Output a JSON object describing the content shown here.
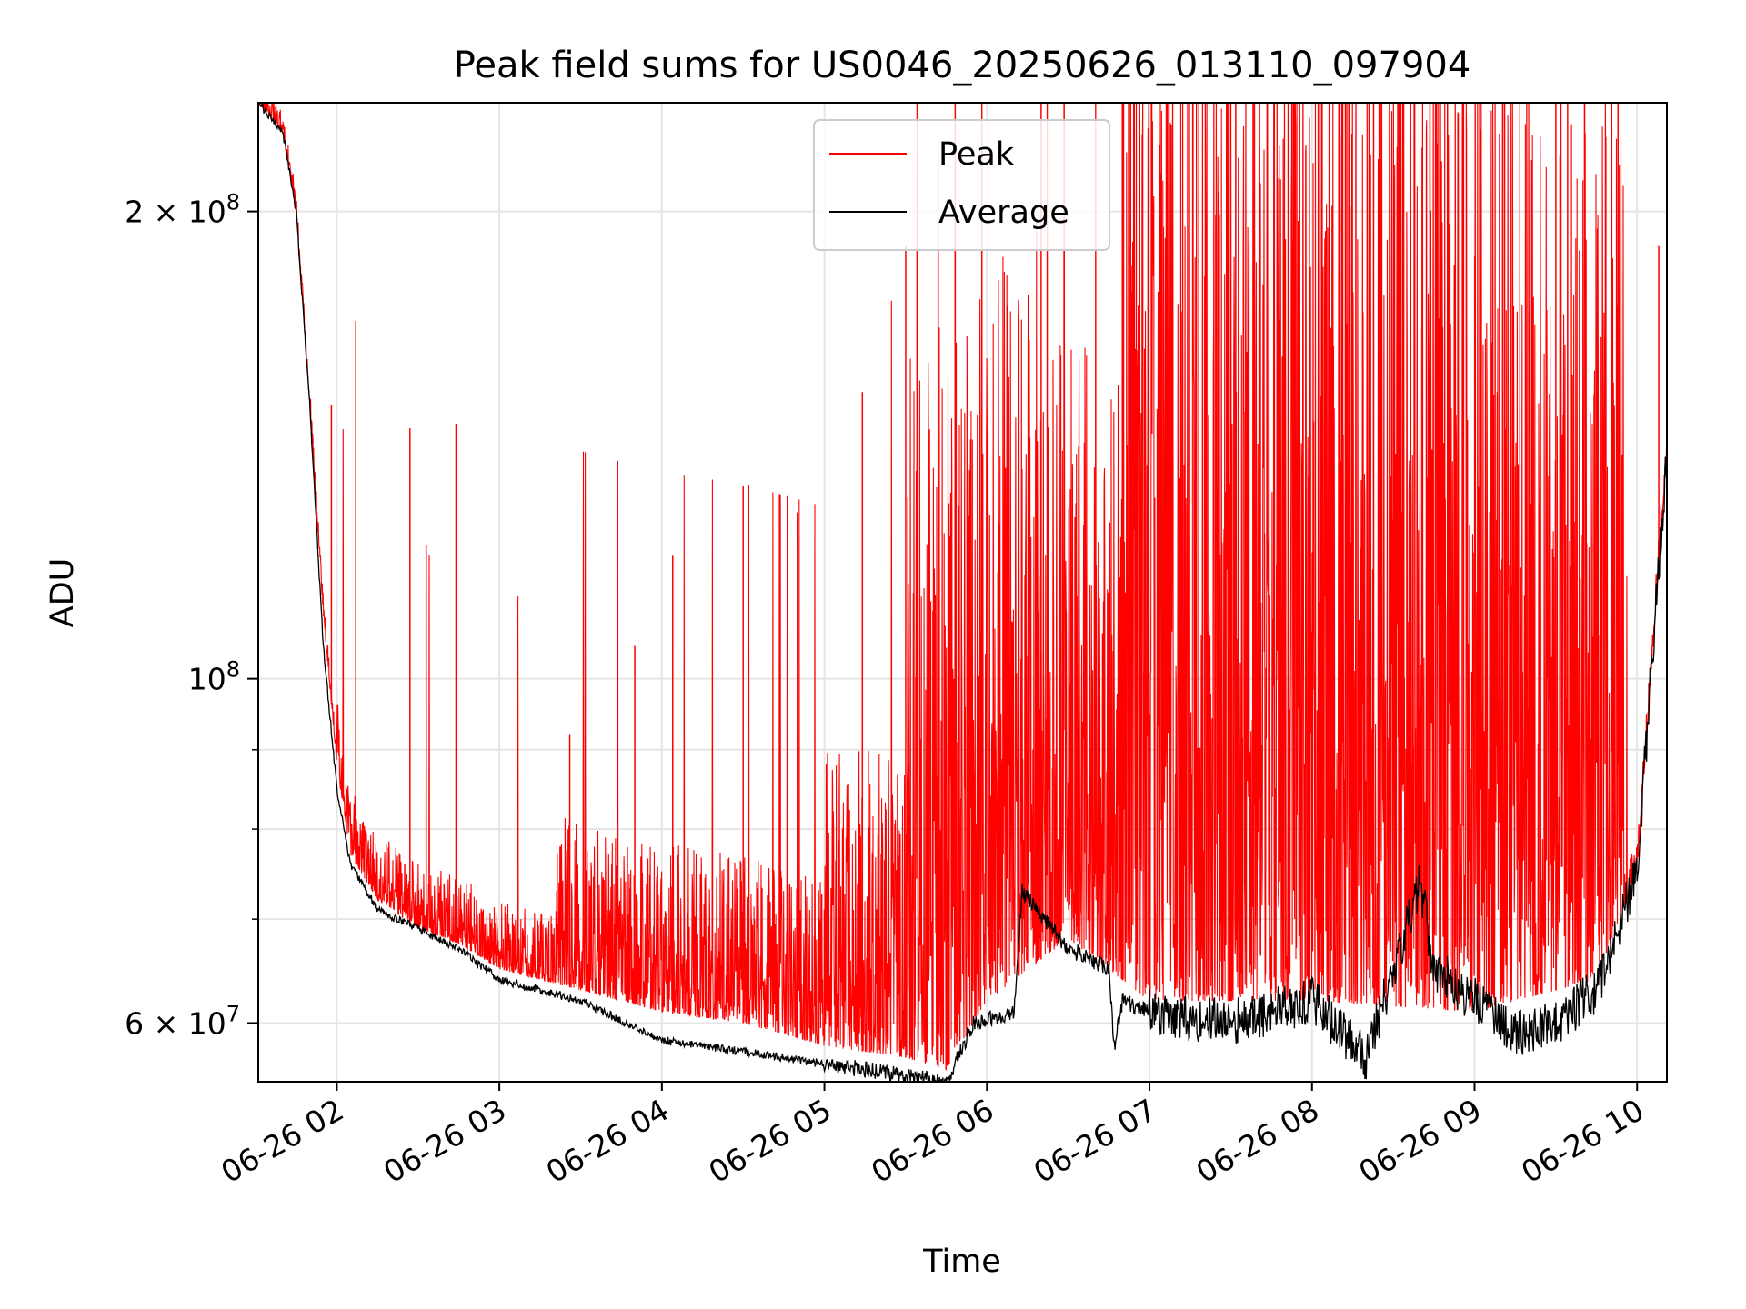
{
  "chart_data": {
    "type": "line",
    "title": "Peak field sums for US0046_20250626_013110_097904",
    "xlabel": "Time",
    "ylabel": "ADU",
    "y_scale": "log",
    "xlim": [
      "2025-06-26 01:31",
      "2025-06-26 10:11"
    ],
    "ylim": [
      55000000,
      235000000
    ],
    "x_ticks": [
      "06-26 02",
      "06-26 03",
      "06-26 04",
      "06-26 05",
      "06-26 06",
      "06-26 07",
      "06-26 08",
      "06-26 09",
      "06-26 10"
    ],
    "x_tick_times": [
      "2025-06-26 02:00",
      "2025-06-26 03:00",
      "2025-06-26 04:00",
      "2025-06-26 05:00",
      "2025-06-26 06:00",
      "2025-06-26 07:00",
      "2025-06-26 08:00",
      "2025-06-26 09:00",
      "2025-06-26 10:00"
    ],
    "y_ticks": [
      {
        "value": 60000000,
        "mantissa": "6",
        "exponent": "7"
      },
      {
        "value": 100000000,
        "mantissa": "",
        "exponent": "8"
      },
      {
        "value": 200000000,
        "mantissa": "2",
        "exponent": "8"
      }
    ],
    "y_minor_ticks": [
      70000000,
      80000000,
      90000000
    ],
    "grid": true,
    "legend": {
      "position": "top-center"
    },
    "colors": {
      "peak": "#ff0000",
      "average": "#000000",
      "grid": "#e5e5e5"
    },
    "series": [
      {
        "name": "Peak",
        "color": "#ff0000",
        "points": [
          [
            "2025-06-26 01:31",
            235000000
          ],
          [
            "2025-06-26 01:40",
            225000000
          ],
          [
            "2025-06-26 01:45",
            200000000
          ],
          [
            "2025-06-26 01:50",
            150000000
          ],
          [
            "2025-06-26 01:55",
            110000000
          ],
          [
            "2025-06-26 02:00",
            88000000
          ],
          [
            "2025-06-26 02:05",
            77000000
          ],
          [
            "2025-06-26 02:15",
            72000000
          ],
          [
            "2025-06-26 02:30",
            69000000
          ],
          [
            "2025-06-26 02:45",
            67500000
          ],
          [
            "2025-06-26 03:00",
            65000000
          ],
          [
            "2025-06-26 03:30",
            63000000
          ],
          [
            "2025-06-26 04:00",
            61000000
          ],
          [
            "2025-06-26 04:30",
            60000000
          ],
          [
            "2025-06-26 05:00",
            58000000
          ],
          [
            "2025-06-26 05:30",
            57000000
          ],
          [
            "2025-06-26 05:45",
            56000000
          ],
          [
            "2025-06-26 06:00",
            62000000
          ],
          [
            "2025-06-26 06:30",
            68000000
          ],
          [
            "2025-06-26 07:00",
            62000000
          ],
          [
            "2025-06-26 08:00",
            62000000
          ],
          [
            "2025-06-26 09:00",
            61000000
          ],
          [
            "2025-06-26 09:45",
            64000000
          ],
          [
            "2025-06-26 10:00",
            75000000
          ],
          [
            "2025-06-26 10:11",
            140000000
          ]
        ],
        "spikes": [
          [
            "2025-06-26 01:58",
            150000000
          ],
          [
            "2025-06-26 02:07",
            170000000
          ],
          [
            "2025-06-26 02:27",
            145000000
          ],
          [
            "2025-06-26 02:44",
            146000000
          ],
          [
            "2025-06-26 02:33",
            122000000
          ],
          [
            "2025-06-26 03:26",
            92000000
          ],
          [
            "2025-06-26 03:50",
            105000000
          ],
          [
            "2025-06-26 04:04",
            120000000
          ],
          [
            "2025-06-26 04:30",
            133000000
          ],
          [
            "2025-06-26 04:50",
            128000000
          ],
          [
            "2025-06-26 05:14",
            153000000
          ],
          [
            "2025-06-26 05:30",
            190000000
          ],
          [
            "2025-06-26 05:42",
            220000000
          ],
          [
            "2025-06-26 06:20",
            235000000
          ],
          [
            "2025-06-26 06:50",
            235000000
          ],
          [
            "2025-06-26 07:30",
            235000000
          ],
          [
            "2025-06-26 08:10",
            235000000
          ],
          [
            "2025-06-26 08:50",
            235000000
          ],
          [
            "2025-06-26 09:30",
            235000000
          ],
          [
            "2025-06-26 10:08",
            190000000
          ]
        ]
      },
      {
        "name": "Average",
        "color": "#000000",
        "points": [
          [
            "2025-06-26 01:31",
            235000000
          ],
          [
            "2025-06-26 01:40",
            225000000
          ],
          [
            "2025-06-26 01:45",
            200000000
          ],
          [
            "2025-06-26 01:50",
            150000000
          ],
          [
            "2025-06-26 01:55",
            105000000
          ],
          [
            "2025-06-26 02:00",
            85000000
          ],
          [
            "2025-06-26 02:05",
            76000000
          ],
          [
            "2025-06-26 02:15",
            71000000
          ],
          [
            "2025-06-26 02:30",
            69000000
          ],
          [
            "2025-06-26 02:45",
            67000000
          ],
          [
            "2025-06-26 03:00",
            64000000
          ],
          [
            "2025-06-26 03:30",
            62000000
          ],
          [
            "2025-06-26 04:00",
            58500000
          ],
          [
            "2025-06-26 04:30",
            57500000
          ],
          [
            "2025-06-26 05:00",
            56500000
          ],
          [
            "2025-06-26 05:30",
            55500000
          ],
          [
            "2025-06-26 05:45",
            55000000
          ],
          [
            "2025-06-26 05:55",
            60000000
          ],
          [
            "2025-06-26 06:10",
            61000000
          ],
          [
            "2025-06-26 06:13",
            73000000
          ],
          [
            "2025-06-26 06:30",
            67000000
          ],
          [
            "2025-06-26 06:45",
            65000000
          ],
          [
            "2025-06-26 06:47",
            58000000
          ],
          [
            "2025-06-26 06:50",
            62000000
          ],
          [
            "2025-06-26 07:00",
            61000000
          ],
          [
            "2025-06-26 07:30",
            60000000
          ],
          [
            "2025-06-26 08:00",
            62000000
          ],
          [
            "2025-06-26 08:20",
            57000000
          ],
          [
            "2025-06-26 08:40",
            74000000
          ],
          [
            "2025-06-26 08:45",
            65000000
          ],
          [
            "2025-06-26 09:00",
            62000000
          ],
          [
            "2025-06-26 09:15",
            59000000
          ],
          [
            "2025-06-26 09:30",
            60000000
          ],
          [
            "2025-06-26 09:45",
            63000000
          ],
          [
            "2025-06-26 10:00",
            75000000
          ],
          [
            "2025-06-26 10:11",
            140000000
          ]
        ]
      }
    ]
  }
}
